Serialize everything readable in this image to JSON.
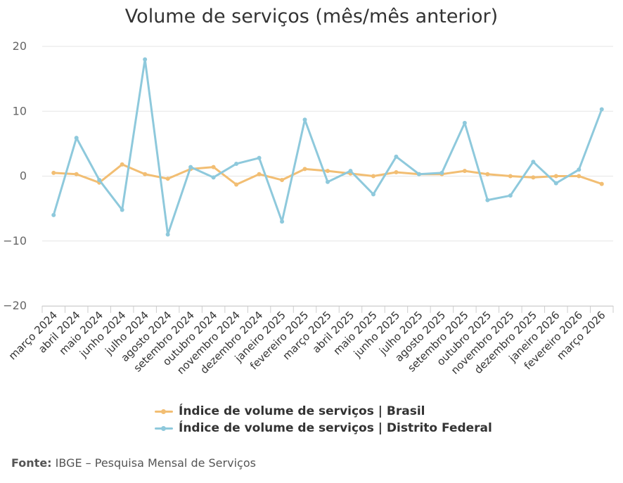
{
  "chart_data": {
    "type": "line",
    "title": "Volume de serviços (mês/mês anterior)",
    "categories": [
      "março 2024",
      "abril 2024",
      "maio 2024",
      "junho 2024",
      "julho 2024",
      "agosto 2024",
      "setembro 2024",
      "outubro 2024",
      "novembro 2024",
      "dezembro 2024",
      "janeiro 2025",
      "fevereiro 2025",
      "março 2025",
      "abril 2025",
      "maio 2025",
      "junho 2025",
      "julho 2025",
      "agosto 2025",
      "setembro 2025",
      "outubro 2025",
      "novembro 2025",
      "dezembro 2025",
      "janeiro 2026",
      "fevereiro 2026",
      "março 2026"
    ],
    "ylim": [
      -20,
      20
    ],
    "yticks": [
      "20",
      "10",
      "0",
      "−10",
      "−20"
    ],
    "yticks_values": [
      20,
      10,
      0,
      -10,
      -20
    ],
    "grid": true,
    "legend_position": "bottom",
    "series": [
      {
        "name": "Índice de volume de serviços | Brasil",
        "color": "#f2be73",
        "values": [
          0.5,
          0.3,
          -1.0,
          1.8,
          0.3,
          -0.4,
          1.1,
          1.4,
          -1.3,
          0.3,
          -0.6,
          1.1,
          0.8,
          0.4,
          0.0,
          0.6,
          0.3,
          0.3,
          0.8,
          0.3,
          0.0,
          -0.2,
          0.0,
          0.0,
          -1.2
        ]
      },
      {
        "name": "Índice de volume de serviços | Distrito Federal",
        "color": "#8ec9dc",
        "values": [
          -6.0,
          5.9,
          -0.6,
          -5.2,
          18.0,
          -9.0,
          1.4,
          -0.2,
          1.9,
          2.8,
          -7.0,
          8.7,
          -0.9,
          0.8,
          -2.8,
          3.0,
          0.3,
          0.5,
          8.2,
          -3.7,
          -3.0,
          2.2,
          -1.1,
          1.0,
          10.3
        ]
      }
    ]
  },
  "footer": {
    "source_label": "Fonte:",
    "source_text": "IBGE – Pesquisa Mensal de Serviços"
  }
}
